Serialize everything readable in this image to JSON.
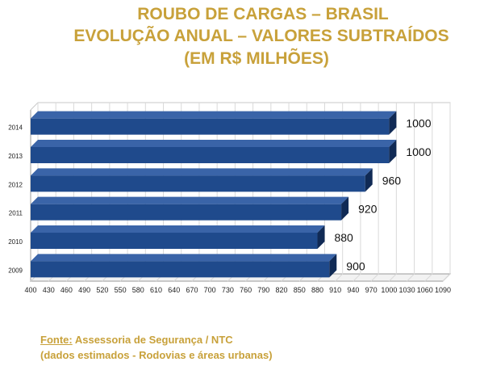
{
  "title": {
    "line1": "ROUBO DE CARGAS – BRASIL",
    "line2": "EVOLUÇÃO ANUAL – VALORES SUBTRAÍDOS",
    "line3": "(EM R$ MILHÕES)"
  },
  "source": {
    "label": "Fonte:",
    "text": " Assessoria de Segurança / NTC",
    "note": "(dados estimados - Rodovias e áreas urbanas)"
  },
  "colors": {
    "title": "#c8a13a",
    "bar_front": "#1f4a8c",
    "bar_side": "#102a55",
    "bar_top": "#3a64a8"
  },
  "chart_data": {
    "type": "bar",
    "orientation": "horizontal",
    "three_d": true,
    "categories": [
      "2014",
      "2013",
      "2012",
      "2011",
      "2010",
      "2009"
    ],
    "values": [
      1000,
      1000,
      960,
      920,
      880,
      900
    ],
    "data_labels": [
      "1000",
      "1000",
      "960",
      "920",
      "880",
      "900"
    ],
    "xlim": [
      400,
      1090
    ],
    "x_ticks": [
      "400",
      "430",
      "460",
      "490",
      "520",
      "550",
      "580",
      "610",
      "640",
      "670",
      "700",
      "730",
      "760",
      "790",
      "820",
      "850",
      "880",
      "910",
      "940",
      "970",
      "1000",
      "1030",
      "1060",
      "1090"
    ],
    "grid": true,
    "legend": "none"
  }
}
